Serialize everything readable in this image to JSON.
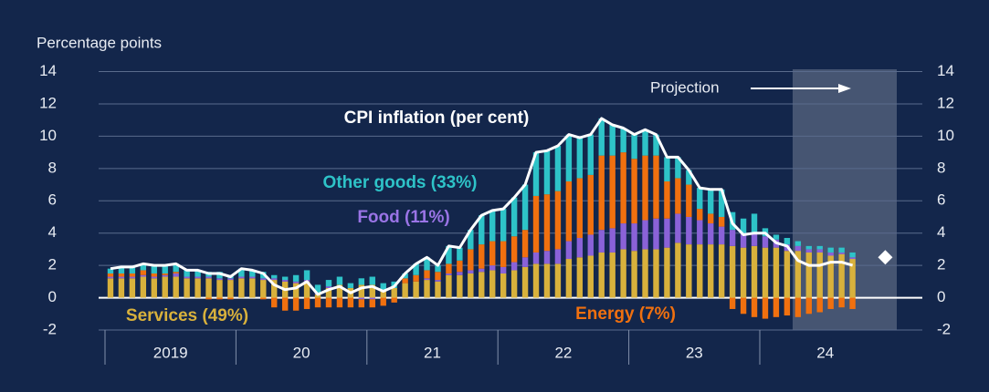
{
  "chart_data": {
    "type": "bar",
    "stacked": true,
    "y_axis_label": "Percentage points",
    "projection_label": "Projection",
    "categories": [
      null,
      null,
      null,
      null,
      null,
      null,
      null,
      null,
      null,
      null,
      null,
      null,
      null,
      null,
      null,
      null,
      null,
      null,
      null,
      null,
      null,
      null,
      null,
      null,
      null,
      null,
      null,
      null,
      null,
      null,
      null,
      null,
      null,
      null,
      null,
      null,
      null,
      null,
      null,
      null,
      null,
      null,
      null,
      null,
      null,
      null,
      null,
      null,
      null,
      null,
      null,
      null,
      null,
      null,
      null,
      null,
      null,
      null,
      null,
      null,
      null,
      null,
      null,
      null,
      null,
      null,
      null,
      null,
      null,
      null,
      null,
      null
    ],
    "year_labels": [
      "2019",
      "20",
      "21",
      "22",
      "23",
      "24"
    ],
    "series": [
      {
        "name": "Services (49%)",
        "color": "#d8b13c",
        "values": [
          1.2,
          1.2,
          1.2,
          1.3,
          1.2,
          1.3,
          1.3,
          1.2,
          1.2,
          1.2,
          1.1,
          1.1,
          1.2,
          1.2,
          1.1,
          1.1,
          1.0,
          0.9,
          1.0,
          0.2,
          0.6,
          0.8,
          0.6,
          0.8,
          0.8,
          0.5,
          0.6,
          0.9,
          1.0,
          1.1,
          1.0,
          1.4,
          1.4,
          1.5,
          1.6,
          1.7,
          1.5,
          1.7,
          1.9,
          2.1,
          2.1,
          2.1,
          2.4,
          2.5,
          2.6,
          2.8,
          2.8,
          3.0,
          2.9,
          3.0,
          3.0,
          3.1,
          3.4,
          3.3,
          3.3,
          3.3,
          3.3,
          3.2,
          3.1,
          3.2,
          3.1,
          3.1,
          2.9,
          2.9,
          2.8,
          2.8,
          2.6,
          2.7,
          2.4,
          null,
          null,
          null
        ]
      },
      {
        "name": "Food (11%)",
        "color": "#8a62d8",
        "values": [
          0.1,
          0.1,
          0.1,
          0.1,
          0.1,
          0.1,
          0.2,
          0.1,
          0.1,
          0.1,
          0.1,
          0.1,
          0.1,
          0.1,
          0.1,
          0.1,
          0.1,
          0.1,
          0.1,
          0.1,
          0.1,
          0.0,
          0.0,
          -0.1,
          -0.1,
          0.0,
          0.0,
          0.0,
          0.0,
          0.1,
          0.1,
          0.1,
          0.2,
          0.2,
          0.2,
          0.3,
          0.4,
          0.5,
          0.6,
          0.7,
          0.8,
          0.9,
          1.1,
          1.2,
          1.3,
          1.4,
          1.5,
          1.6,
          1.7,
          1.8,
          1.9,
          1.8,
          1.8,
          1.7,
          1.5,
          1.3,
          1.1,
          1.0,
          0.9,
          0.8,
          0.7,
          0.5,
          0.4,
          0.3,
          0.2,
          0.2,
          0.2,
          0.1,
          0.1,
          null,
          null,
          null
        ]
      },
      {
        "name": "Energy (7%)",
        "color": "#f0700f",
        "values": [
          0.2,
          0.2,
          0.2,
          0.3,
          0.2,
          0.1,
          0.1,
          0.0,
          0.0,
          -0.1,
          -0.1,
          -0.1,
          0.0,
          0.0,
          -0.1,
          -0.6,
          -0.8,
          -0.8,
          -0.7,
          -0.6,
          -0.6,
          -0.6,
          -0.6,
          -0.5,
          -0.5,
          -0.5,
          -0.3,
          0.3,
          0.4,
          0.5,
          0.5,
          0.6,
          0.7,
          1.3,
          1.5,
          1.5,
          1.6,
          1.6,
          1.7,
          3.5,
          3.5,
          3.6,
          3.7,
          3.7,
          3.7,
          4.6,
          4.5,
          4.4,
          4.0,
          4.0,
          3.9,
          2.3,
          2.2,
          2.0,
          0.7,
          0.6,
          0.6,
          -0.7,
          -1.0,
          -1.2,
          -1.3,
          -1.2,
          -1.1,
          -1.2,
          -1.0,
          -0.9,
          -0.7,
          -0.6,
          -0.7,
          null,
          null,
          null
        ]
      },
      {
        "name": "Other goods (33%)",
        "color": "#2ec3c8",
        "values": [
          0.3,
          0.4,
          0.4,
          0.4,
          0.5,
          0.5,
          0.5,
          0.4,
          0.4,
          0.3,
          0.4,
          0.2,
          0.5,
          0.4,
          0.4,
          0.2,
          0.2,
          0.4,
          0.6,
          0.5,
          0.4,
          0.5,
          0.3,
          0.4,
          0.5,
          0.4,
          0.4,
          0.3,
          0.7,
          0.8,
          0.4,
          1.1,
          0.8,
          1.2,
          1.8,
          1.9,
          2.0,
          2.4,
          2.8,
          2.7,
          2.7,
          2.8,
          2.9,
          2.5,
          2.5,
          2.3,
          1.9,
          1.5,
          1.5,
          1.6,
          1.3,
          1.5,
          1.3,
          0.9,
          1.3,
          1.5,
          1.7,
          1.1,
          0.9,
          1.2,
          0.5,
          0.3,
          0.4,
          0.3,
          0.2,
          0.2,
          0.3,
          0.3,
          0.3,
          null,
          null,
          null
        ]
      },
      {
        "name": "CPI inflation (per cent)",
        "type": "line",
        "color": "#ffffff",
        "values": [
          1.8,
          1.9,
          1.9,
          2.1,
          2.0,
          2.0,
          2.1,
          1.7,
          1.7,
          1.5,
          1.5,
          1.3,
          1.8,
          1.7,
          1.5,
          0.8,
          0.5,
          0.6,
          1.0,
          0.2,
          0.5,
          0.7,
          0.3,
          0.6,
          0.7,
          0.4,
          0.7,
          1.5,
          2.1,
          2.5,
          2.0,
          3.2,
          3.1,
          4.2,
          5.1,
          5.4,
          5.5,
          6.2,
          7.0,
          9.0,
          9.1,
          9.4,
          10.1,
          9.9,
          10.1,
          11.1,
          10.7,
          10.5,
          10.1,
          10.4,
          10.1,
          8.7,
          8.7,
          7.9,
          6.8,
          6.7,
          6.7,
          4.6,
          3.9,
          4.0,
          4.0,
          3.4,
          3.2,
          2.3,
          2.0,
          2.0,
          2.2,
          2.2,
          2.0,
          null,
          null,
          null
        ]
      },
      {
        "type": "marker",
        "color": "#ffffff",
        "values": [
          null,
          null,
          null,
          null,
          null,
          null,
          null,
          null,
          null,
          null,
          null,
          null,
          null,
          null,
          null,
          null,
          null,
          null,
          null,
          null,
          null,
          null,
          null,
          null,
          null,
          null,
          null,
          null,
          null,
          null,
          null,
          null,
          null,
          null,
          null,
          null,
          null,
          null,
          null,
          null,
          null,
          null,
          null,
          null,
          null,
          null,
          null,
          null,
          null,
          null,
          null,
          null,
          null,
          null,
          null,
          null,
          null,
          null,
          null,
          null,
          null,
          null,
          null,
          null,
          null,
          null,
          null,
          null,
          null,
          null,
          null,
          2.5
        ]
      }
    ],
    "ylim": [
      -2,
      14
    ],
    "yticks": [
      -2,
      0,
      2,
      4,
      6,
      8,
      10,
      12,
      14
    ],
    "y2lim": [
      -2,
      14
    ],
    "y2ticks": [
      -2,
      0,
      2,
      4,
      6,
      8,
      10,
      12,
      14
    ],
    "grid": true
  }
}
